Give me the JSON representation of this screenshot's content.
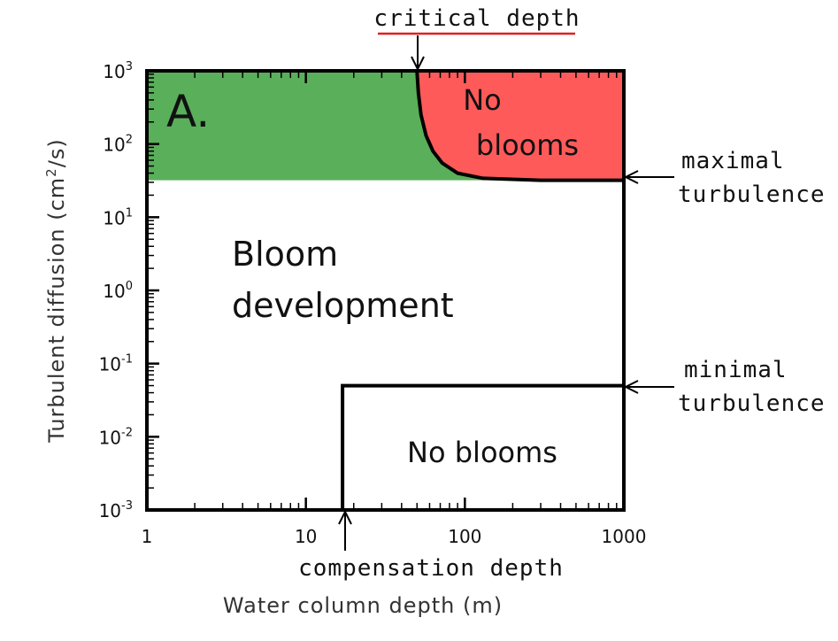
{
  "chart_data": {
    "type": "diagram",
    "xlabel": "Water column depth (m)",
    "ylabel_main": "Turbulent diffusion (cm",
    "ylabel_sup": "2",
    "ylabel_tail": "/s)",
    "x_ticks": [
      {
        "value": 1,
        "label": "1"
      },
      {
        "value": 10,
        "label": "10"
      },
      {
        "value": 100,
        "label": "100"
      },
      {
        "value": 1000,
        "label": "1000"
      }
    ],
    "y_ticks": [
      {
        "exp": 3,
        "base": "10",
        "sup": "3"
      },
      {
        "exp": 2,
        "base": "10",
        "sup": "2"
      },
      {
        "exp": 1,
        "base": "10",
        "sup": "1"
      },
      {
        "exp": 0,
        "base": "10",
        "sup": "0"
      },
      {
        "exp": -1,
        "base": "10",
        "sup": "-1"
      },
      {
        "exp": -2,
        "base": "10",
        "sup": "-2"
      },
      {
        "exp": -3,
        "base": "10",
        "sup": "-3"
      }
    ],
    "xlim": [
      1,
      1000
    ],
    "ylim": [
      0.001,
      1000
    ],
    "x_scale": "log",
    "y_scale": "log",
    "maximal_turbulence_value": 32,
    "minimal_turbulence_value": 0.05,
    "compensation_depth_value": 17,
    "critical_depth_value": 50,
    "critical_curve": [
      [
        50,
        1000
      ],
      [
        51,
        500
      ],
      [
        53,
        250
      ],
      [
        57,
        130
      ],
      [
        63,
        80
      ],
      [
        72,
        55
      ],
      [
        90,
        40
      ],
      [
        130,
        34
      ],
      [
        300,
        32
      ],
      [
        1000,
        32
      ]
    ],
    "colors": {
      "bloom_region": "#5aaf5a",
      "no_bloom_region": "#ff5a5a",
      "panel_letter": "#0a5a0a",
      "no_bloom_text": "#b00000",
      "critical_underline": "#e02020"
    },
    "labels": {
      "panel": "A.",
      "no_blooms_top_1": "No",
      "no_blooms_top_2": "blooms",
      "bloom_1": "Bloom",
      "bloom_2": "development",
      "no_blooms_bottom": "No blooms",
      "critical_depth": "critical depth",
      "maximal_1": "maximal",
      "maximal_2": "turbulence",
      "minimal_1": "minimal",
      "minimal_2": "turbulence",
      "compensation_depth": "compensation depth"
    }
  }
}
